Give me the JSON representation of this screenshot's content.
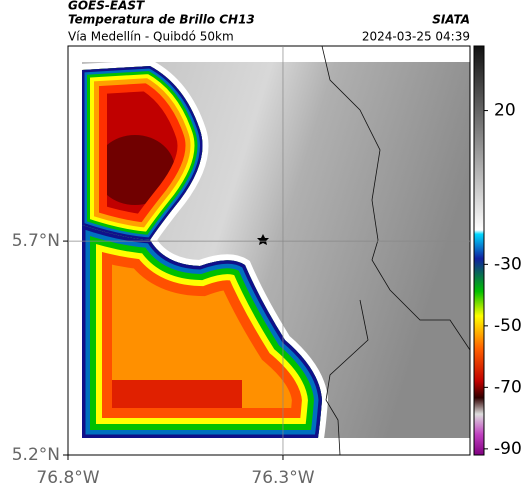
{
  "header": {
    "satellite": "GOES-EAST",
    "product": "Temperatura de Brillo CH13",
    "agency": "SIATA",
    "route": "Vía Medellín - Quibdó 50km",
    "datetime": "2024-03-25 04:39"
  },
  "map": {
    "xlim": [
      -76.8,
      -75.865
    ],
    "ylim": [
      5.2,
      6.156
    ],
    "xticks": [
      {
        "value": -76.8,
        "label": "76.8°W"
      },
      {
        "value": -76.3,
        "label": "76.3°W"
      }
    ],
    "yticks": [
      {
        "value": 5.2,
        "label": "5.2°N"
      },
      {
        "value": 5.7,
        "label": "5.7°N"
      }
    ]
  },
  "colorbar": {
    "lim": [
      -92,
      41
    ],
    "ticks": [
      20,
      -30,
      -50,
      -70,
      -90
    ]
  }
}
